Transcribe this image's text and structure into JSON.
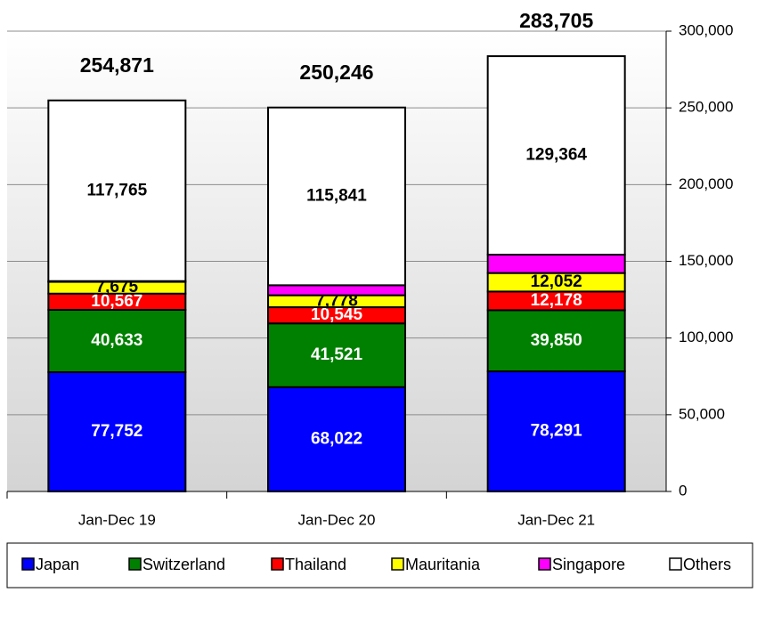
{
  "chart_data": {
    "type": "stacked-bar",
    "categories": [
      "Jan-Dec 19",
      "Jan-Dec 20",
      "Jan-Dec 21"
    ],
    "series": [
      {
        "name": "Japan",
        "color": "#0000ff",
        "label_color": "#ffffff",
        "values": [
          77752,
          68022,
          78291
        ],
        "value_labels": [
          "77,752",
          "68,022",
          "78,291"
        ]
      },
      {
        "name": "Switzerland",
        "color": "#008000",
        "label_color": "#ffffff",
        "values": [
          40633,
          41521,
          39850
        ],
        "value_labels": [
          "40,633",
          "41,521",
          "39,850"
        ]
      },
      {
        "name": "Thailand",
        "color": "#ff0000",
        "label_color": "#ffffff",
        "values": [
          10567,
          10545,
          12178
        ],
        "value_labels": [
          "10,567",
          "10,545",
          "12,178"
        ]
      },
      {
        "name": "Mauritania",
        "color": "#ffff00",
        "label_color": "#000000",
        "values": [
          7675,
          7778,
          12052
        ],
        "value_labels": [
          "7,675",
          "7,778",
          "12,052"
        ]
      },
      {
        "name": "Singapore",
        "color": "#ff00ff",
        "label_color": "#000000",
        "values": [
          479,
          6539,
          11970
        ]
      },
      {
        "name": "Others",
        "color": "#ffffff",
        "label_color": "#000000",
        "values": [
          117765,
          115841,
          129364
        ],
        "value_labels": [
          "117,765",
          "115,841",
          "129,364"
        ]
      }
    ],
    "totals": {
      "values": [
        254871,
        250246,
        283705
      ],
      "value_labels": [
        "254,871",
        "250,246",
        "283,705"
      ]
    },
    "ylim": [
      0,
      300000
    ],
    "yticks": [
      0,
      {
        "value": 50000,
        "label": "50,000"
      },
      {
        "value": 100000,
        "label": "100,000"
      },
      {
        "value": 150000,
        "label": "150,000"
      },
      {
        "value": 200000,
        "label": "200,000"
      },
      {
        "value": 250000,
        "label": "250,000"
      },
      {
        "value": 300000,
        "label": "300,000"
      }
    ],
    "grid": true,
    "legend": "bottom"
  }
}
